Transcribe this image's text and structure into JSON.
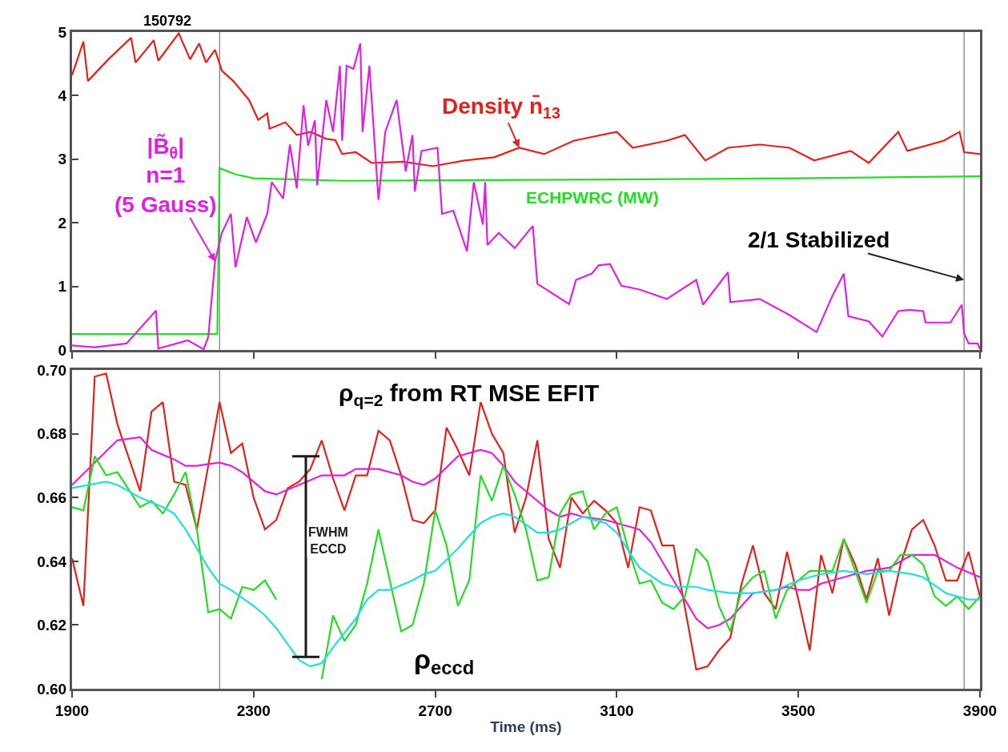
{
  "chart_data": [
    {
      "type": "line",
      "xlim": [
        1900,
        3900
      ],
      "xticks": [
        {
          "value": 1900,
          "label": null
        },
        {
          "value": 2300,
          "label": null
        },
        {
          "value": 2700,
          "label": null
        },
        {
          "value": 3100,
          "label": null
        },
        {
          "value": 3500,
          "label": null
        },
        {
          "value": 3900,
          "label": null
        }
      ],
      "ylim": [
        0,
        5
      ],
      "yticks": [
        0,
        1,
        2,
        3,
        4,
        5
      ],
      "tick_labels": "y",
      "ref_lines": [
        {
          "axis": "x",
          "value": 2225,
          "color": "#606060"
        },
        {
          "axis": "x",
          "value": 3865,
          "color": "#606060"
        }
      ],
      "annotations": [
        "150792",
        {
          "text": "2/1 Stabilized",
          "x": 3865,
          "y": 1.1
        }
      ],
      "series": [
        {
          "name": "Density n̄$_{13}$",
          "color": "#e3211b",
          "x": [
            1900,
            1925,
            1935,
            1980,
            2030,
            2040,
            2080,
            2090,
            2135,
            2160,
            2180,
            2195,
            2215,
            2230,
            2255,
            2290,
            2310,
            2330,
            2335,
            2370,
            2395,
            2425,
            2460,
            2480,
            2495,
            2525,
            2560,
            2630,
            2695,
            2765,
            2830,
            2885,
            2940,
            3005,
            3100,
            3135,
            3210,
            3250,
            3295,
            3345,
            3415,
            3480,
            3535,
            3615,
            3655,
            3720,
            3740,
            3820,
            3855,
            3865,
            3900
          ],
          "values": [
            4.32,
            4.85,
            4.23,
            4.57,
            4.91,
            4.52,
            4.87,
            4.55,
            4.98,
            4.57,
            4.82,
            4.52,
            4.72,
            4.39,
            4.23,
            3.93,
            3.62,
            3.72,
            3.48,
            3.58,
            3.38,
            3.43,
            3.32,
            3.3,
            3.08,
            3.11,
            2.94,
            2.96,
            2.89,
            2.98,
            3.03,
            3.18,
            3.08,
            3.29,
            3.43,
            3.18,
            3.29,
            3.38,
            2.98,
            3.18,
            3.23,
            3.18,
            2.98,
            3.13,
            2.94,
            3.43,
            3.13,
            3.29,
            3.43,
            3.11,
            3.08
          ]
        },
        {
          "name": "ECHPWRC (MW)",
          "color": "#22dd22",
          "x": [
            1900,
            2220,
            2225,
            2260,
            2300,
            2500,
            2800,
            3100,
            3500,
            3900
          ],
          "values": [
            0.25,
            0.25,
            2.86,
            2.76,
            2.7,
            2.66,
            2.67,
            2.68,
            2.7,
            2.73
          ]
        },
        {
          "name": "|B̃$_{θ}$|\nn=1\n(5 Gauss)",
          "color": "#e020e0",
          "x": [
            1900,
            1950,
            2020,
            2085,
            2090,
            2155,
            2190,
            2200,
            2215,
            2230,
            2250,
            2260,
            2285,
            2305,
            2330,
            2340,
            2365,
            2380,
            2395,
            2410,
            2420,
            2435,
            2440,
            2460,
            2475,
            2490,
            2495,
            2505,
            2520,
            2535,
            2540,
            2555,
            2575,
            2590,
            2615,
            2635,
            2650,
            2655,
            2670,
            2705,
            2715,
            2740,
            2770,
            2785,
            2805,
            2810,
            2815,
            2840,
            2875,
            2915,
            2925,
            2995,
            3010,
            3045,
            3060,
            3085,
            3110,
            3150,
            3210,
            3275,
            3290,
            3345,
            3350,
            3415,
            3480,
            3540,
            3575,
            3600,
            3610,
            3655,
            3685,
            3720,
            3745,
            3775,
            3780,
            3835,
            3860,
            3865,
            3875,
            3895,
            3900
          ],
          "values": [
            0.07,
            0.04,
            0.1,
            0.62,
            0.02,
            0.15,
            0.01,
            0.2,
            1.39,
            1.84,
            2.14,
            1.3,
            2.09,
            1.69,
            2.14,
            2.64,
            2.38,
            3.23,
            2.54,
            3.85,
            3.21,
            3.61,
            2.59,
            3.93,
            3.43,
            4.47,
            3.29,
            4.47,
            4.42,
            4.82,
            3.43,
            4.47,
            2.36,
            3.43,
            3.93,
            2.81,
            3.38,
            2.49,
            3.13,
            3.18,
            2.14,
            2.19,
            1.55,
            2.64,
            1.97,
            2.64,
            1.65,
            1.84,
            1.6,
            1.95,
            1.04,
            0.72,
            1.1,
            1.2,
            1.33,
            1.35,
            1.01,
            0.95,
            0.8,
            1.1,
            0.71,
            1.22,
            0.75,
            0.8,
            0.55,
            0.28,
            0.85,
            1.2,
            0.53,
            0.45,
            0.21,
            0.61,
            0.63,
            0.61,
            0.43,
            0.43,
            0.71,
            0.26,
            0.1,
            0.1,
            0.01
          ]
        }
      ]
    },
    {
      "type": "line",
      "xlabel": "Time (ms)",
      "xlim": [
        1900,
        3900
      ],
      "xticks": [
        1900,
        2300,
        2700,
        3100,
        3500,
        3900
      ],
      "ylim": [
        0.6,
        0.7
      ],
      "yticks": [
        {
          "value": 0.6,
          "label": "0.60"
        },
        0.62,
        0.64,
        0.66,
        0.68,
        {
          "value": 0.7,
          "label": "0.70"
        }
      ],
      "ref_lines": [
        {
          "axis": "x",
          "value": 2225,
          "color": "#606060"
        },
        {
          "axis": "x",
          "value": 3865,
          "color": "#606060"
        }
      ],
      "annotations": [
        "ρ$_{q=2}$ from RT MSE EFIT",
        "ρ$_{eccd}$"
      ],
      "series": [
        {
          "color": "#e3211b",
          "x": [
            1900,
            1925,
            1950,
            1975,
            2000,
            2050,
            2075,
            2100,
            2125,
            2150,
            2175,
            2225,
            2250,
            2275,
            2300,
            2325,
            2350,
            2375,
            2400,
            2425,
            2450,
            2475,
            2500,
            2525,
            2550,
            2575,
            2600,
            2625,
            2650,
            2675,
            2700,
            2725,
            2750,
            2775,
            2800,
            2825,
            2850,
            2875,
            2900,
            2925,
            2950,
            2975,
            3000,
            3025,
            3050,
            3075,
            3100,
            3125,
            3150,
            3175,
            3200,
            3225,
            3275,
            3300,
            3325,
            3350,
            3375,
            3400,
            3425,
            3450,
            3475,
            3500,
            3525,
            3550,
            3575,
            3600,
            3625,
            3650,
            3675,
            3700,
            3725,
            3750,
            3775,
            3800,
            3825,
            3850,
            3875,
            3900
          ],
          "values": [
            0.641,
            0.626,
            0.698,
            0.699,
            0.683,
            0.662,
            0.687,
            0.69,
            0.665,
            0.664,
            0.65,
            0.69,
            0.674,
            0.677,
            0.66,
            0.65,
            0.653,
            0.663,
            0.665,
            0.669,
            0.678,
            0.666,
            0.656,
            0.667,
            0.667,
            0.681,
            0.678,
            0.667,
            0.653,
            0.652,
            0.656,
            0.682,
            0.675,
            0.667,
            0.69,
            0.68,
            0.674,
            0.649,
            0.66,
            0.678,
            0.647,
            0.638,
            0.66,
            0.655,
            0.659,
            0.656,
            0.652,
            0.638,
            0.657,
            0.656,
            0.645,
            0.645,
            0.606,
            0.607,
            0.612,
            0.616,
            0.633,
            0.645,
            0.63,
            0.625,
            0.643,
            0.628,
            0.612,
            0.642,
            0.63,
            0.647,
            0.639,
            0.628,
            0.641,
            0.623,
            0.639,
            0.65,
            0.653,
            0.645,
            0.634,
            0.634,
            0.643,
            0.629
          ]
        },
        {
          "color": "#e020e0",
          "x": [
            1900,
            2000,
            2050,
            2075,
            2125,
            2150,
            2175,
            2225,
            2250,
            2275,
            2325,
            2350,
            2400,
            2450,
            2500,
            2525,
            2575,
            2625,
            2650,
            2675,
            2700,
            2750,
            2800,
            2825,
            2850,
            2875,
            2950,
            2975,
            3000,
            3025,
            3075,
            3100,
            3150,
            3175,
            3225,
            3250,
            3275,
            3300,
            3325,
            3350,
            3375,
            3400,
            3450,
            3475,
            3500,
            3525,
            3550,
            3600,
            3650,
            3700,
            3750,
            3775,
            3800,
            3850,
            3900
          ],
          "values": [
            0.664,
            0.678,
            0.679,
            0.675,
            0.672,
            0.67,
            0.67,
            0.671,
            0.67,
            0.668,
            0.662,
            0.661,
            0.664,
            0.667,
            0.667,
            0.669,
            0.669,
            0.667,
            0.665,
            0.664,
            0.666,
            0.673,
            0.675,
            0.674,
            0.67,
            0.665,
            0.656,
            0.654,
            0.655,
            0.654,
            0.653,
            0.652,
            0.65,
            0.646,
            0.634,
            0.628,
            0.622,
            0.619,
            0.62,
            0.622,
            0.626,
            0.63,
            0.631,
            0.632,
            0.631,
            0.631,
            0.633,
            0.635,
            0.637,
            0.638,
            0.642,
            0.642,
            0.642,
            0.638,
            0.635
          ]
        },
        {
          "color": "#22dd22",
          "x": [
            1900,
            1925,
            1950,
            1975,
            2000,
            2050,
            2075,
            2100,
            2125,
            2150,
            2175,
            2200,
            2225,
            2250,
            2275,
            2300,
            2325,
            2350,
            2375,
            2400,
            2425,
            2450,
            2475,
            2500,
            2525,
            2550,
            2575,
            2600,
            2625,
            2650,
            2675,
            2700,
            2725,
            2750,
            2775,
            2800,
            2825,
            2850,
            2875,
            2900,
            2925,
            2950,
            2975,
            3000,
            3025,
            3050,
            3075,
            3100,
            3125,
            3150,
            3175,
            3200,
            3225,
            3250,
            3275,
            3300,
            3325,
            3350,
            3375,
            3400,
            3425,
            3450,
            3475,
            3500,
            3525,
            3575,
            3600,
            3625,
            3650,
            3675,
            3700,
            3725,
            3750,
            3775,
            3800,
            3825,
            3850,
            3875,
            3900
          ],
          "values": [
            0.657,
            0.656,
            0.673,
            0.667,
            0.668,
            0.657,
            0.659,
            0.655,
            0.661,
            0.668,
            0.65,
            0.624,
            0.625,
            0.622,
            0.632,
            0.631,
            0.634,
            0.628,
            null,
            null,
            null,
            0.603,
            0.623,
            0.615,
            0.62,
            0.633,
            0.65,
            0.634,
            0.618,
            0.62,
            0.633,
            0.656,
            0.645,
            0.626,
            0.634,
            0.667,
            0.659,
            0.67,
            0.661,
            0.65,
            0.634,
            0.635,
            0.655,
            0.661,
            0.662,
            0.65,
            0.655,
            0.657,
            0.644,
            0.633,
            0.634,
            0.627,
            0.625,
            0.629,
            0.644,
            0.64,
            0.626,
            0.618,
            0.631,
            0.635,
            0.637,
            0.622,
            0.631,
            0.634,
            0.637,
            0.637,
            0.647,
            0.637,
            0.627,
            0.637,
            0.637,
            0.642,
            0.642,
            0.639,
            0.629,
            0.626,
            0.629,
            0.625,
            0.629
          ]
        },
        {
          "color": "#22dddd",
          "x": [
            1900,
            1975,
            2000,
            2050,
            2100,
            2125,
            2150,
            2175,
            2200,
            2225,
            2250,
            2300,
            2325,
            2350,
            2375,
            2400,
            2425,
            2450,
            2475,
            2525,
            2550,
            2575,
            2600,
            2650,
            2675,
            2700,
            2750,
            2800,
            2825,
            2850,
            2875,
            2925,
            2950,
            2975,
            3025,
            3075,
            3100,
            3150,
            3200,
            3225,
            3275,
            3300,
            3350,
            3400,
            3450,
            3500,
            3550,
            3600,
            3650,
            3700,
            3750,
            3775,
            3825,
            3875,
            3900
          ],
          "values": [
            0.663,
            0.665,
            0.664,
            0.66,
            0.657,
            0.655,
            0.65,
            0.644,
            0.638,
            0.633,
            0.631,
            0.626,
            0.623,
            0.619,
            0.614,
            0.609,
            0.607,
            0.608,
            0.613,
            0.622,
            0.628,
            0.631,
            0.631,
            0.634,
            0.636,
            0.637,
            0.644,
            0.652,
            0.654,
            0.655,
            0.654,
            0.649,
            0.649,
            0.65,
            0.654,
            0.652,
            0.649,
            0.638,
            0.633,
            0.632,
            0.632,
            0.631,
            0.63,
            0.63,
            0.631,
            0.634,
            0.636,
            0.637,
            0.636,
            0.637,
            0.636,
            0.635,
            0.63,
            0.628,
            0.628
          ]
        },
        {
          "name": "FWHM\nECCD",
          "color": "#1a1a1a",
          "x": [
            2415,
            2415
          ],
          "values": [
            0.61,
            0.673
          ]
        },
        {
          "color": "#1a1a1a",
          "x": [
            2385,
            2445
          ],
          "values": [
            0.673,
            0.673
          ]
        },
        {
          "color": "#1a1a1a",
          "x": [
            2385,
            2445
          ],
          "values": [
            0.61,
            0.61
          ]
        }
      ]
    }
  ]
}
